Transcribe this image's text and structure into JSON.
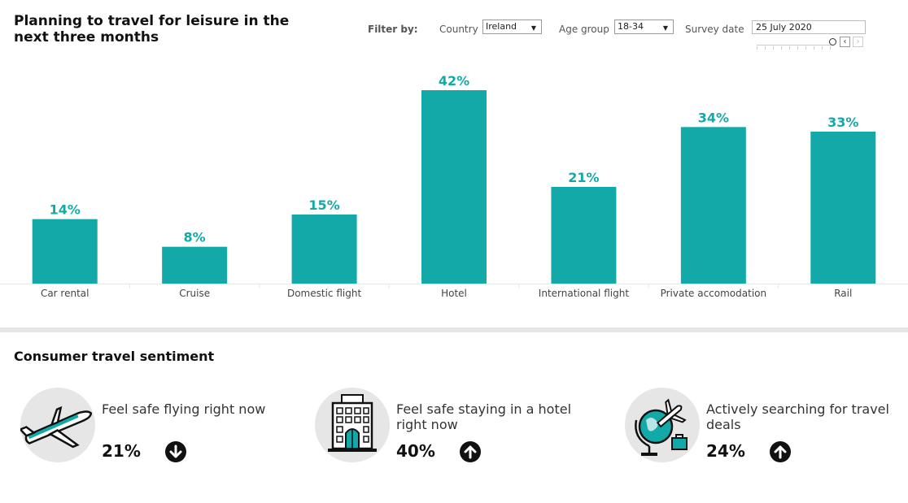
{
  "title": "Planning to travel for leisure in the next three months",
  "filters": {
    "label": "Filter by:",
    "country_label": "Country",
    "country_value": "Ireland",
    "age_label": "Age group",
    "age_value": "18-34",
    "date_label": "Survey date",
    "date_value": "25 July 2020"
  },
  "colors": {
    "bar": "#14a9a9",
    "value_label": "#14a9a9"
  },
  "chart_data": {
    "type": "bar",
    "categories": [
      "Car rental",
      "Cruise",
      "Domestic flight",
      "Hotel",
      "International flight",
      "Private accomodation",
      "Rail"
    ],
    "values": [
      14,
      8,
      15,
      42,
      21,
      34,
      33
    ],
    "value_labels": [
      "14%",
      "8%",
      "15%",
      "42%",
      "21%",
      "34%",
      "33%"
    ],
    "ylim": [
      0,
      42
    ],
    "grid": false
  },
  "sentiment": {
    "title": "Consumer travel sentiment",
    "cards": [
      {
        "label": "Feel safe flying right now",
        "value": "21%",
        "trend": "down",
        "icon": "airplane-icon"
      },
      {
        "label": "Feel safe staying in a hotel right now",
        "value": "40%",
        "trend": "up",
        "icon": "hotel-icon"
      },
      {
        "label": "Actively searching for travel deals",
        "value": "24%",
        "trend": "up",
        "icon": "globe-travel-icon"
      }
    ]
  }
}
